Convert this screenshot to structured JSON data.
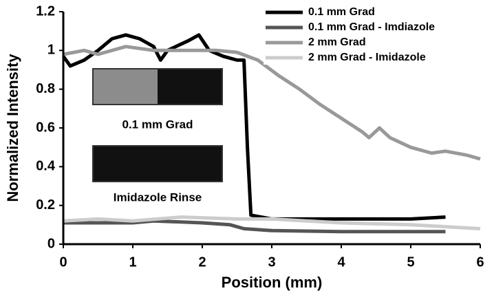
{
  "chart_data": {
    "type": "line",
    "x_label": "Position (mm)",
    "y_label": "Normalized Intensity",
    "xlim": [
      0,
      6
    ],
    "ylim": [
      0,
      1.2
    ],
    "xticks": [
      0,
      1,
      2,
      3,
      4,
      5,
      6
    ],
    "yticks": [
      0,
      0.2,
      0.4,
      0.6,
      0.8,
      1,
      1.2
    ],
    "legend": "upper-right",
    "annotations": [
      "0.1 mm Grad",
      "Imidazole Rinse"
    ],
    "series": [
      {
        "name": "0.1 mm Grad",
        "color": "#000000",
        "x": [
          0,
          0.1,
          0.3,
          0.5,
          0.7,
          0.9,
          1.1,
          1.3,
          1.4,
          1.5,
          1.8,
          1.95,
          2.1,
          2.3,
          2.5,
          2.6,
          2.65,
          2.7,
          3,
          3.5,
          4,
          4.5,
          5,
          5.5
        ],
        "values": [
          0.97,
          0.92,
          0.95,
          1.0,
          1.06,
          1.08,
          1.06,
          1.02,
          0.95,
          1.0,
          1.05,
          1.08,
          1.0,
          0.97,
          0.95,
          0.95,
          0.5,
          0.15,
          0.13,
          0.13,
          0.13,
          0.13,
          0.13,
          0.14
        ]
      },
      {
        "name": "0.1 mm Grad - Imdiazole",
        "color": "#555555",
        "x": [
          0,
          1,
          1.3,
          2,
          2.4,
          2.6,
          3,
          4,
          5.5
        ],
        "values": [
          0.11,
          0.11,
          0.12,
          0.11,
          0.1,
          0.08,
          0.07,
          0.065,
          0.065
        ]
      },
      {
        "name": "2 mm Grad",
        "color": "#999999",
        "x": [
          0,
          0.3,
          0.5,
          0.9,
          1.3,
          1.8,
          2.2,
          2.5,
          2.8,
          3.1,
          3.4,
          3.7,
          4,
          4.3,
          4.4,
          4.55,
          4.7,
          5,
          5.3,
          5.5,
          5.8,
          6
        ],
        "values": [
          0.98,
          1.0,
          0.98,
          1.02,
          1.0,
          1.0,
          1.0,
          0.99,
          0.95,
          0.87,
          0.8,
          0.72,
          0.65,
          0.58,
          0.55,
          0.6,
          0.55,
          0.5,
          0.47,
          0.48,
          0.46,
          0.44
        ]
      },
      {
        "name": "2 mm Grad - Imidazole",
        "color": "#cccccc",
        "x": [
          0,
          0.5,
          1,
          1.7,
          2.5,
          3,
          4,
          5,
          5.5,
          6
        ],
        "values": [
          0.12,
          0.13,
          0.12,
          0.14,
          0.13,
          0.13,
          0.11,
          0.1,
          0.09,
          0.08
        ]
      }
    ]
  }
}
